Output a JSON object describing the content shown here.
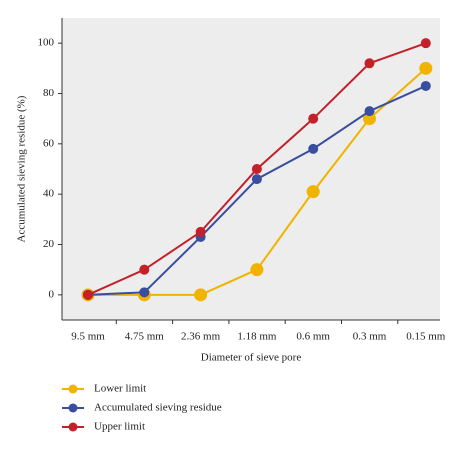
{
  "chart_data": {
    "type": "line",
    "x_label": "Diameter of sieve pore",
    "y_label": "Accumulated sieving residue (%)",
    "categories": [
      "9.5 mm",
      "4.75 mm",
      "2.36 mm",
      "1.18 mm",
      "0.6 mm",
      "0.3 mm",
      "0.15 mm"
    ],
    "ylim": [
      -10,
      110
    ],
    "yticks": [
      0,
      20,
      40,
      60,
      80,
      100
    ],
    "series": [
      {
        "name": "Lower limit",
        "color": "#f0b400",
        "values": [
          0,
          0,
          0,
          10,
          41,
          70,
          90
        ]
      },
      {
        "name": "Accumulated sieving residue",
        "color": "#3a4ea0",
        "values": [
          0,
          1,
          23,
          46,
          58,
          73,
          83
        ]
      },
      {
        "name": "Upper limit",
        "color": "#c4202a",
        "values": [
          0,
          10,
          25,
          50,
          70,
          92,
          100
        ]
      }
    ]
  }
}
